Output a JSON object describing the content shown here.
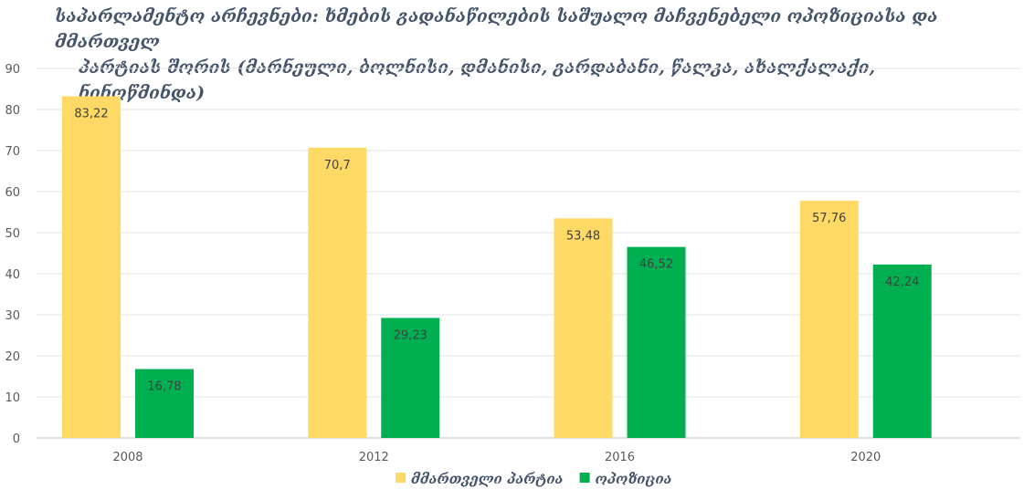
{
  "chart_data": {
    "type": "bar",
    "title_line1": "საპარლამენტო არჩევნები: ხმების გადანაწილების საშუალო მაჩვენებელი ოპოზიციასა და მმართველ",
    "title_line2": "პარტიას შორის (მარნეული, ბოლნისი, დმანისი, გარდაბანი, წალკა, ახალქალაქი, ნინოწმინდა)",
    "categories": [
      "2008",
      "2012",
      "2016",
      "2020"
    ],
    "series": [
      {
        "name": "მმართველი პარტია",
        "color": "#ffd966",
        "values": [
          83.22,
          70.7,
          53.48,
          57.76
        ],
        "labels": [
          "83,22",
          "70,7",
          "53,48",
          "57,76"
        ]
      },
      {
        "name": "ოპოზიცია",
        "color": "#00b050",
        "values": [
          16.78,
          29.23,
          46.52,
          42.24
        ],
        "labels": [
          "16,78",
          "29,23",
          "46,52",
          "42,24"
        ]
      }
    ],
    "ylim": [
      0,
      90
    ],
    "yticks": [
      0,
      10,
      20,
      30,
      40,
      50,
      60,
      70,
      80,
      90
    ],
    "grid": true,
    "legend_position": "bottom"
  }
}
